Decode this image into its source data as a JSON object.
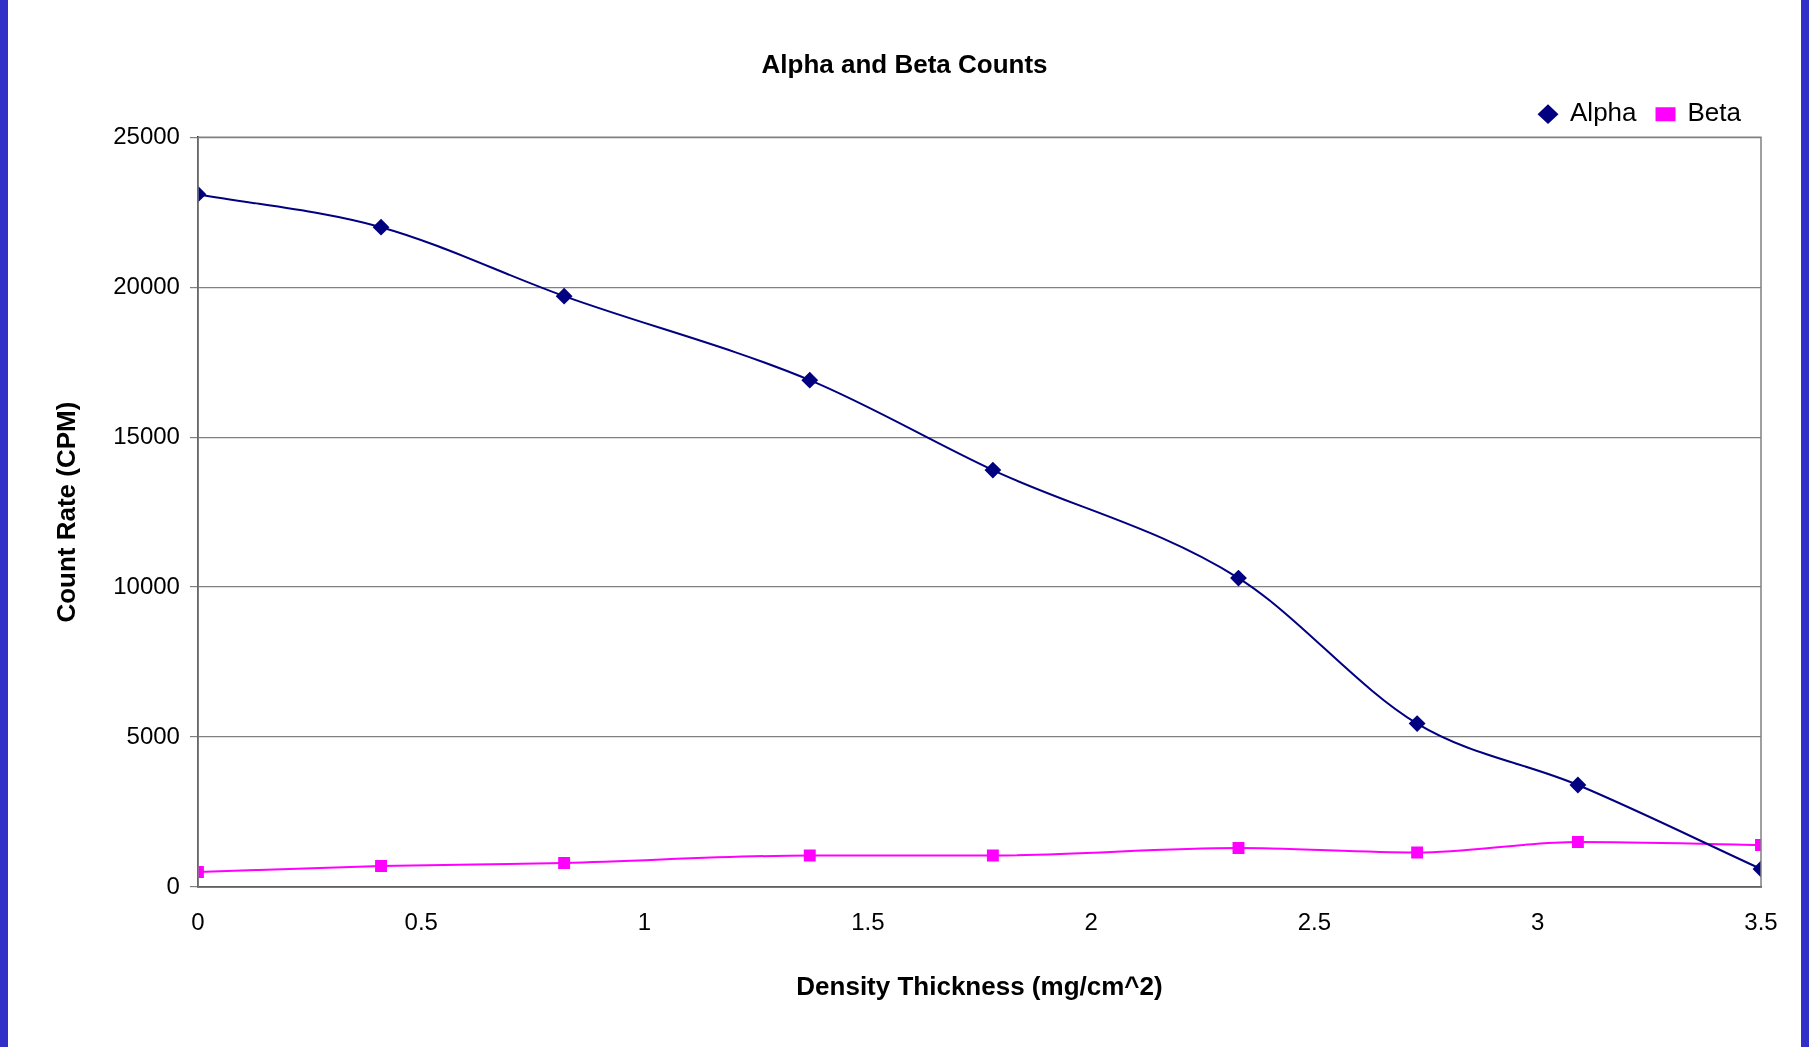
{
  "chart_data": {
    "type": "line",
    "title": "Alpha and Beta Counts",
    "xlabel": "Density Thickness (mg/cm^2)",
    "ylabel": "Count Rate (CPM)",
    "series": [
      {
        "name": "Alpha",
        "color": "#000080",
        "marker": "diamond",
        "x": [
          0,
          0.41,
          0.82,
          1.37,
          1.78,
          2.33,
          2.73,
          3.09,
          3.5
        ],
        "values": [
          23100,
          22000,
          19700,
          16900,
          13900,
          10300,
          5450,
          3400,
          600
        ]
      },
      {
        "name": "Beta",
        "color": "#ff00ff",
        "marker": "square",
        "x": [
          0,
          0.41,
          0.82,
          1.37,
          1.78,
          2.33,
          2.73,
          3.09,
          3.5
        ],
        "values": [
          500,
          700,
          800,
          1050,
          1050,
          1300,
          1150,
          1500,
          1400
        ]
      }
    ],
    "xlim": [
      0,
      3.5
    ],
    "xticks": [
      0,
      0.5,
      1,
      1.5,
      2,
      2.5,
      3,
      3.5
    ],
    "ylim": [
      0,
      25000
    ],
    "yticks": [
      0,
      5000,
      10000,
      15000,
      20000,
      25000
    ],
    "grid": "y",
    "legend": "top right",
    "line_style": "solid"
  }
}
